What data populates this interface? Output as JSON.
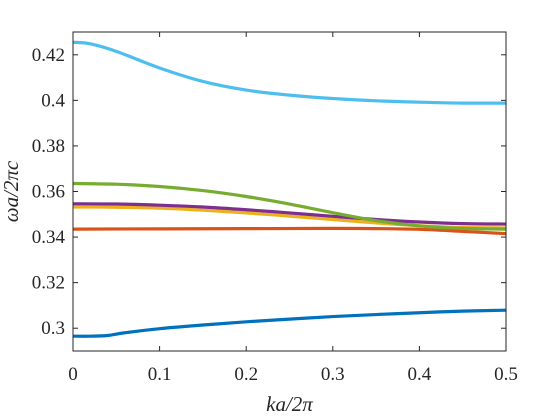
{
  "chart_data": {
    "type": "line",
    "xlabel": "ka/2π",
    "ylabel": "ωa/2πc",
    "xlim": [
      0,
      0.5
    ],
    "ylim": [
      0.29,
      0.43
    ],
    "xticks": [
      "0",
      "0.1",
      "0.2",
      "0.3",
      "0.4",
      "0.5"
    ],
    "yticks": [
      "0.3",
      "0.32",
      "0.34",
      "0.36",
      "0.38",
      "0.4",
      "0.42"
    ],
    "grid": false,
    "series": [
      {
        "color": "#0072bd",
        "x": [
          0,
          0.02,
          0.04,
          0.06,
          0.1,
          0.15,
          0.2,
          0.25,
          0.3,
          0.35,
          0.4,
          0.45,
          0.5
        ],
        "y": [
          0.2965,
          0.2965,
          0.2968,
          0.298,
          0.2998,
          0.3014,
          0.3028,
          0.304,
          0.3051,
          0.306,
          0.3068,
          0.3075,
          0.3079
        ]
      },
      {
        "color": "#d95319",
        "x": [
          0,
          0.1,
          0.2,
          0.3,
          0.35,
          0.4,
          0.45,
          0.5
        ],
        "y": [
          0.3435,
          0.3436,
          0.3437,
          0.3438,
          0.3437,
          0.3434,
          0.3425,
          0.3415
        ]
      },
      {
        "color": "#edb120",
        "x": [
          0,
          0.05,
          0.1,
          0.15,
          0.2,
          0.25,
          0.3,
          0.35,
          0.4,
          0.45,
          0.5
        ],
        "y": [
          0.3532,
          0.3531,
          0.3527,
          0.3518,
          0.3506,
          0.3492,
          0.3477,
          0.3462,
          0.345,
          0.3442,
          0.344
        ]
      },
      {
        "color": "#7e2f8e",
        "x": [
          0,
          0.05,
          0.1,
          0.15,
          0.2,
          0.25,
          0.3,
          0.35,
          0.4,
          0.45,
          0.5
        ],
        "y": [
          0.3546,
          0.3545,
          0.354,
          0.3532,
          0.352,
          0.3506,
          0.3491,
          0.3477,
          0.3466,
          0.3459,
          0.3457
        ]
      },
      {
        "color": "#77ac30",
        "x": [
          0,
          0.05,
          0.1,
          0.15,
          0.2,
          0.25,
          0.3,
          0.35,
          0.4,
          0.45,
          0.5
        ],
        "y": [
          0.3635,
          0.3632,
          0.3622,
          0.3604,
          0.3578,
          0.3545,
          0.3507,
          0.3472,
          0.3449,
          0.3438,
          0.3435
        ]
      },
      {
        "color": "#4dbeee",
        "x": [
          0,
          0.02,
          0.05,
          0.1,
          0.15,
          0.2,
          0.25,
          0.3,
          0.35,
          0.4,
          0.45,
          0.5
        ],
        "y": [
          0.4255,
          0.4248,
          0.4215,
          0.4142,
          0.4083,
          0.4045,
          0.4023,
          0.4008,
          0.3998,
          0.3992,
          0.3988,
          0.3988
        ]
      }
    ]
  }
}
